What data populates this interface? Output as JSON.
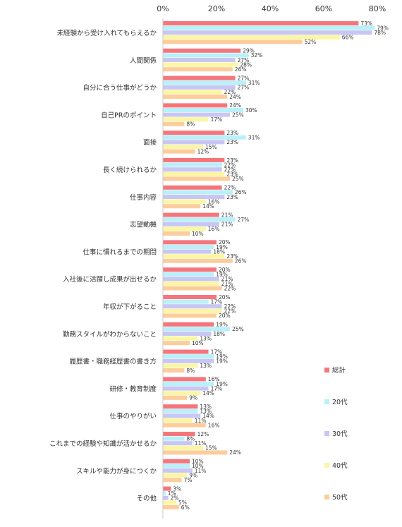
{
  "chart_data": {
    "type": "bar",
    "orientation": "horizontal",
    "xlim": [
      0,
      80
    ],
    "x_ticks": [
      "0%",
      "20%",
      "40%",
      "60%",
      "80%"
    ],
    "grid": false,
    "legend_placement": "right",
    "categories": [
      "未経験から受け入れてもらえるか",
      "人間関係",
      "自分に合う仕事がどうか",
      "自己PRのポイント",
      "面接",
      "長く続けられるか",
      "仕事内容",
      "志望動機",
      "仕事に慣れるまでの期間",
      "入社後に活躍し成果が出せるか",
      "年収が下がること",
      "勤務スタイルがわからないこと",
      "履歴書・職務経歴書の書き方",
      "研修・教育制度",
      "仕事のやりがい",
      "これまでの経験や知識が活かせるか",
      "スキルや能力が身につくか",
      "その他"
    ],
    "series": [
      {
        "name": "総計",
        "color": "#f4767c",
        "values": [
          73,
          29,
          27,
          24,
          23,
          23,
          22,
          21,
          20,
          20,
          20,
          19,
          17,
          16,
          13,
          12,
          10,
          3
        ]
      },
      {
        "name": "20代",
        "color": "#b9f0fa",
        "values": [
          79,
          32,
          31,
          30,
          31,
          22,
          26,
          27,
          19,
          19,
          17,
          25,
          19,
          19,
          13,
          8,
          10,
          1
        ]
      },
      {
        "name": "30代",
        "color": "#c8c6f4",
        "values": [
          78,
          27,
          27,
          25,
          23,
          22,
          23,
          21,
          18,
          21,
          22,
          18,
          19,
          17,
          14,
          11,
          11,
          2
        ]
      },
      {
        "name": "40代",
        "color": "#fbf6a4",
        "values": [
          66,
          28,
          22,
          17,
          15,
          23,
          16,
          16,
          23,
          21,
          22,
          13,
          13,
          14,
          11,
          15,
          9,
          5
        ]
      },
      {
        "name": "50代",
        "color": "#fccd9c",
        "values": [
          52,
          26,
          24,
          8,
          12,
          25,
          14,
          10,
          26,
          22,
          20,
          10,
          8,
          9,
          16,
          24,
          7,
          6
        ]
      }
    ],
    "value_suffix": "%"
  }
}
